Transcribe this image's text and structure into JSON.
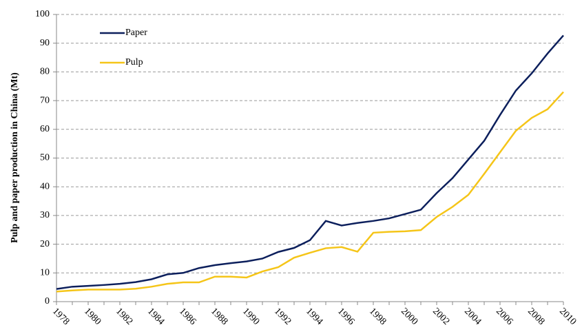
{
  "chart_data": {
    "type": "line",
    "y_label": "Pulp and paper production in China (Mt)",
    "categories": [
      "1978",
      null,
      "1980",
      null,
      "1982",
      null,
      "1984",
      null,
      "1986",
      null,
      "1988",
      null,
      "1990",
      null,
      "1992",
      null,
      "1994",
      null,
      "1996",
      null,
      "1998",
      null,
      "2000",
      null,
      "2002",
      null,
      "2004",
      null,
      "2006",
      null,
      "2008",
      null,
      "2010"
    ],
    "series": [
      {
        "name": "Paper",
        "color": "#0c1f5c",
        "values": [
          4.4,
          5.2,
          5.5,
          5.8,
          6.2,
          6.8,
          7.8,
          9.5,
          10,
          11.7,
          12.7,
          13.4,
          14,
          15,
          17.3,
          18.7,
          21.4,
          28.1,
          26.5,
          27.4,
          28.1,
          29,
          30.5,
          32,
          37.8,
          43,
          49.5,
          56,
          65,
          73.5,
          79.5,
          86.4,
          92.7
        ]
      },
      {
        "name": "Pulp",
        "color": "#f5c518",
        "values": [
          3.5,
          3.9,
          4.2,
          4.2,
          4.2,
          4.5,
          5.2,
          6.2,
          6.7,
          6.7,
          8.7,
          8.7,
          8.4,
          10.5,
          12,
          15.3,
          17,
          18.6,
          19,
          17.4,
          24,
          24.3,
          24.5,
          24.9,
          29.5,
          33,
          37.2,
          44.5,
          52,
          59.5,
          64,
          67,
          73
        ]
      }
    ],
    "ylim": [
      0,
      100
    ],
    "yticks": [
      0,
      10,
      20,
      30,
      40,
      50,
      60,
      70,
      80,
      90,
      100
    ],
    "grid": true,
    "legend": "upper-left"
  }
}
